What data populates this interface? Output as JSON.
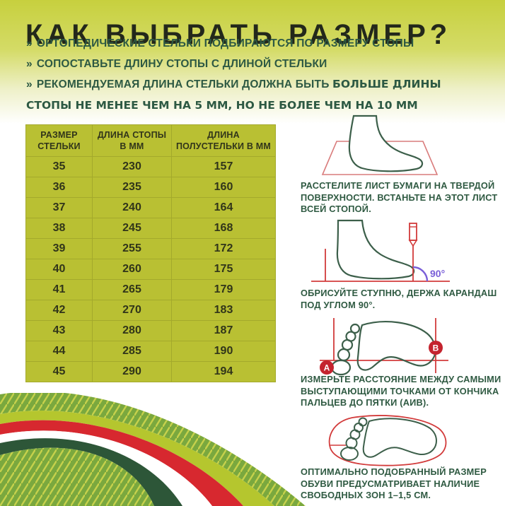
{
  "title": "КАК ВЫБРАТЬ РАЗМЕР?",
  "marker": "»",
  "bullets": [
    {
      "text": "ОРТОПЕДИЧЕСКИЕ СТЕЛЬКИ ПОДБИРАЮТСЯ ПО РАЗМЕРУ СТОПЫ"
    },
    {
      "text": "СОПОСТАВЬТЕ ДЛИНУ СТОПЫ С ДЛИНОЙ СТЕЛЬКИ"
    },
    {
      "text": "РЕКОМЕНДУЕМАЯ ДЛИНА СТЕЛЬКИ ДОЛЖНА БЫТЬ ",
      "strong": "БОЛЬШЕ ДЛИНЫ СТОПЫ НЕ МЕНЕЕ ЧЕМ НА 5 ММ, НО НЕ БОЛЕЕ ЧЕМ НА 10 ММ"
    }
  ],
  "size_table": {
    "headers": [
      "РАЗМЕР СТЕЛЬКИ",
      "ДЛИНА СТОПЫ В ММ",
      "ДЛИНА ПОЛУСТЕЛЬКИ В ММ"
    ],
    "rows": [
      [
        "35",
        "230",
        "157"
      ],
      [
        "36",
        "235",
        "160"
      ],
      [
        "37",
        "240",
        "164"
      ],
      [
        "38",
        "245",
        "168"
      ],
      [
        "39",
        "255",
        "172"
      ],
      [
        "40",
        "260",
        "175"
      ],
      [
        "41",
        "265",
        "179"
      ],
      [
        "42",
        "270",
        "183"
      ],
      [
        "43",
        "280",
        "187"
      ],
      [
        "44",
        "285",
        "190"
      ],
      [
        "45",
        "290",
        "194"
      ]
    ]
  },
  "instructions": [
    {
      "icon": "foot-on-paper-icon",
      "text": "РАССТЕЛИТЕ ЛИСТ БУМАГИ НА ТВЕРДОЙ ПОВЕРХНОСТИ. ВСТАНЬТЕ НА ЭТОТ ЛИСТ ВСЕЙ СТОПОЙ."
    },
    {
      "icon": "foot-tracing-pencil-icon",
      "text": "ОБРИСУЙТЕ СТУПНЮ, ДЕРЖА КАРАНДАШ ПОД УГЛОМ 90°.",
      "angle_label": "90°"
    },
    {
      "icon": "footprint-measure-icon",
      "text": "ИЗМЕРЬТЕ РАССТОЯНИЕ МЕЖДУ САМЫМИ ВЫСТУПАЮЩИМИ ТОЧКАМИ ОТ КОНЧИКА ПАЛЬЦЕВ ДО ПЯТКИ (АИВ).",
      "point_a": "А",
      "point_b": "В"
    },
    {
      "icon": "footprint-optimal-size-icon",
      "text": "ОПТИМАЛЬНО ПОДОБРАННЫЙ РАЗМЕР ОБУВИ ПРЕДУСМАТРИВАЕТ НАЛИЧИЕ СВОБОДНЫХ ЗОН 1–1,5 СМ."
    }
  ],
  "colors": {
    "header_top": "#c7d03e",
    "table_bg": "#b9c033",
    "table_text": "#31351a",
    "bullet_green": "#2d5943",
    "outline_green": "#3c5f4a",
    "accent_red": "#d23b3b",
    "paper_red": "#d97c7c",
    "badge_red": "#c4232e",
    "angle_purple": "#7a5fd8"
  }
}
